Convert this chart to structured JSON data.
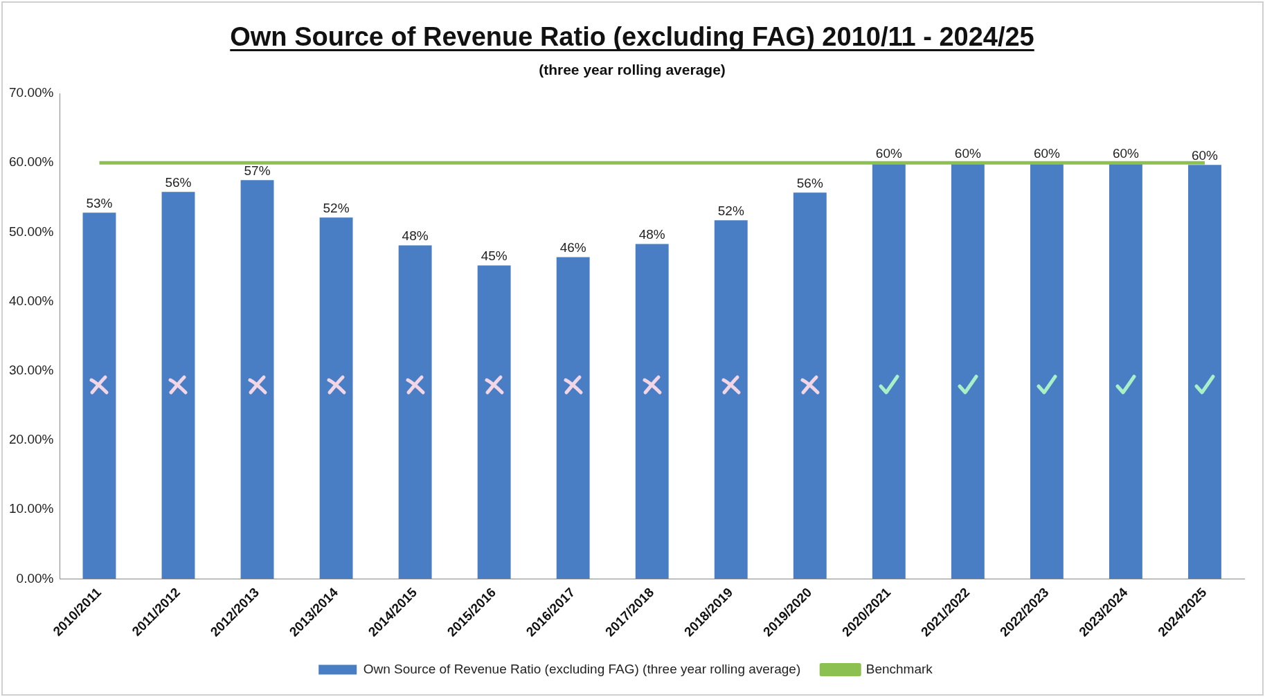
{
  "chart_data": {
    "type": "bar",
    "title": "Own Source of Revenue Ratio (excluding FAG) 2010/11 - 2024/25",
    "subtitle": "(three year rolling average)",
    "categories": [
      "2010/2011",
      "2011/2012",
      "2012/2013",
      "2013/2014",
      "2014/2015",
      "2015/2016",
      "2016/2017",
      "2017/2018",
      "2018/2019",
      "2019/2020",
      "2020/2021",
      "2021/2022",
      "2022/2023",
      "2023/2024",
      "2024/2025"
    ],
    "series": [
      {
        "name": "Own Source of Revenue Ratio (excluding FAG) (three year rolling average)",
        "color": "#4a7ec4",
        "values": [
          52.8,
          55.8,
          57.5,
          52.1,
          48.1,
          45.2,
          46.4,
          48.3,
          51.7,
          55.7,
          60.0,
          60.0,
          60.0,
          60.0,
          59.7
        ],
        "value_labels": [
          "53%",
          "56%",
          "57%",
          "52%",
          "48%",
          "45%",
          "46%",
          "48%",
          "52%",
          "56%",
          "60%",
          "60%",
          "60%",
          "60%",
          "60%"
        ]
      },
      {
        "name": "Benchmark",
        "type": "line",
        "color": "#8cc152",
        "values": [
          60,
          60,
          60,
          60,
          60,
          60,
          60,
          60,
          60,
          60,
          60,
          60,
          60,
          60,
          60
        ]
      }
    ],
    "ylim": [
      0,
      70
    ],
    "yticks": [
      {
        "value": 0,
        "label": "0.00%"
      },
      {
        "value": 10,
        "label": "10.00%"
      },
      {
        "value": 20,
        "label": "20.00%"
      },
      {
        "value": 30,
        "label": "30.00%"
      },
      {
        "value": 40,
        "label": "40.00%"
      },
      {
        "value": 50,
        "label": "50.00%"
      },
      {
        "value": 60,
        "label": "60.00%"
      },
      {
        "value": 70,
        "label": "70.00%"
      }
    ],
    "grid": false,
    "legend": "bottom",
    "marker": "none"
  }
}
